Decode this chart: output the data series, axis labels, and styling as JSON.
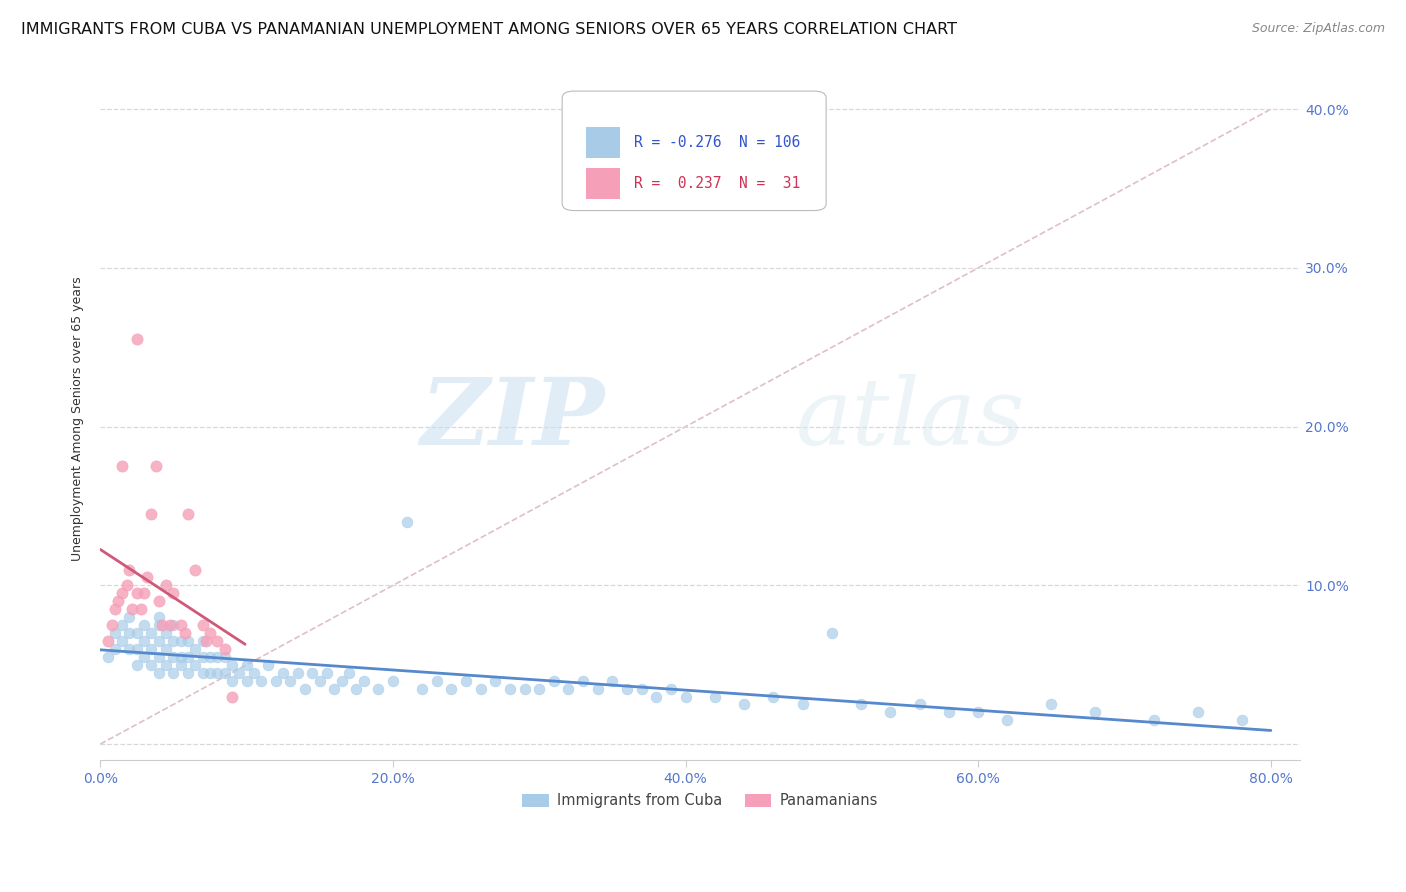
{
  "title": "IMMIGRANTS FROM CUBA VS PANAMANIAN UNEMPLOYMENT AMONG SENIORS OVER 65 YEARS CORRELATION CHART",
  "source": "Source: ZipAtlas.com",
  "ylabel": "Unemployment Among Seniors over 65 years",
  "watermark_zip": "ZIP",
  "watermark_atlas": "atlas",
  "xlim": [
    0,
    0.82
  ],
  "ylim": [
    -0.01,
    0.42
  ],
  "xticks": [
    0.0,
    0.2,
    0.4,
    0.6,
    0.8
  ],
  "xticklabels": [
    "0.0%",
    "20.0%",
    "40.0%",
    "60.0%",
    "80.0%"
  ],
  "yticks": [
    0.0,
    0.1,
    0.2,
    0.3,
    0.4
  ],
  "yticklabels_right": [
    "",
    "10.0%",
    "20.0%",
    "30.0%",
    "40.0%"
  ],
  "cuba_color": "#a8cce8",
  "panama_color": "#f5a0b8",
  "cuba_trendline_color": "#5588cc",
  "panama_trendline_color": "#d05878",
  "diag_color": "#d8a0b0",
  "grid_color": "#d8d8d8",
  "background_color": "#ffffff",
  "title_fontsize": 11.5,
  "axis_label_fontsize": 9,
  "tick_fontsize": 10,
  "legend_r_color_cuba": "#3355cc",
  "legend_r_color_panama": "#cc3355",
  "cuba_scatter_x": [
    0.005,
    0.01,
    0.01,
    0.015,
    0.015,
    0.02,
    0.02,
    0.02,
    0.025,
    0.025,
    0.025,
    0.03,
    0.03,
    0.03,
    0.035,
    0.035,
    0.035,
    0.04,
    0.04,
    0.04,
    0.04,
    0.04,
    0.045,
    0.045,
    0.045,
    0.05,
    0.05,
    0.05,
    0.05,
    0.055,
    0.055,
    0.055,
    0.06,
    0.06,
    0.06,
    0.065,
    0.065,
    0.07,
    0.07,
    0.07,
    0.075,
    0.075,
    0.08,
    0.08,
    0.085,
    0.085,
    0.09,
    0.09,
    0.095,
    0.1,
    0.1,
    0.105,
    0.11,
    0.115,
    0.12,
    0.125,
    0.13,
    0.135,
    0.14,
    0.145,
    0.15,
    0.155,
    0.16,
    0.165,
    0.17,
    0.175,
    0.18,
    0.19,
    0.2,
    0.21,
    0.22,
    0.23,
    0.24,
    0.25,
    0.26,
    0.27,
    0.28,
    0.29,
    0.3,
    0.31,
    0.32,
    0.33,
    0.34,
    0.35,
    0.36,
    0.37,
    0.38,
    0.39,
    0.4,
    0.42,
    0.44,
    0.46,
    0.48,
    0.5,
    0.52,
    0.54,
    0.56,
    0.58,
    0.6,
    0.62,
    0.65,
    0.68,
    0.72,
    0.75,
    0.78
  ],
  "cuba_scatter_y": [
    0.055,
    0.06,
    0.07,
    0.065,
    0.075,
    0.06,
    0.07,
    0.08,
    0.05,
    0.06,
    0.07,
    0.055,
    0.065,
    0.075,
    0.05,
    0.06,
    0.07,
    0.045,
    0.055,
    0.065,
    0.075,
    0.08,
    0.05,
    0.06,
    0.07,
    0.045,
    0.055,
    0.065,
    0.075,
    0.05,
    0.055,
    0.065,
    0.045,
    0.055,
    0.065,
    0.05,
    0.06,
    0.045,
    0.055,
    0.065,
    0.045,
    0.055,
    0.045,
    0.055,
    0.045,
    0.055,
    0.04,
    0.05,
    0.045,
    0.04,
    0.05,
    0.045,
    0.04,
    0.05,
    0.04,
    0.045,
    0.04,
    0.045,
    0.035,
    0.045,
    0.04,
    0.045,
    0.035,
    0.04,
    0.045,
    0.035,
    0.04,
    0.035,
    0.04,
    0.14,
    0.035,
    0.04,
    0.035,
    0.04,
    0.035,
    0.04,
    0.035,
    0.035,
    0.035,
    0.04,
    0.035,
    0.04,
    0.035,
    0.04,
    0.035,
    0.035,
    0.03,
    0.035,
    0.03,
    0.03,
    0.025,
    0.03,
    0.025,
    0.07,
    0.025,
    0.02,
    0.025,
    0.02,
    0.02,
    0.015,
    0.025,
    0.02,
    0.015,
    0.02,
    0.015
  ],
  "panama_scatter_x": [
    0.005,
    0.008,
    0.01,
    0.012,
    0.015,
    0.015,
    0.018,
    0.02,
    0.022,
    0.025,
    0.025,
    0.028,
    0.03,
    0.032,
    0.035,
    0.038,
    0.04,
    0.042,
    0.045,
    0.048,
    0.05,
    0.055,
    0.058,
    0.06,
    0.065,
    0.07,
    0.072,
    0.075,
    0.08,
    0.085,
    0.09
  ],
  "panama_scatter_y": [
    0.065,
    0.075,
    0.085,
    0.09,
    0.095,
    0.175,
    0.1,
    0.11,
    0.085,
    0.095,
    0.255,
    0.085,
    0.095,
    0.105,
    0.145,
    0.175,
    0.09,
    0.075,
    0.1,
    0.075,
    0.095,
    0.075,
    0.07,
    0.145,
    0.11,
    0.075,
    0.065,
    0.07,
    0.065,
    0.06,
    0.03
  ],
  "diag_line_x": [
    0.0,
    0.8
  ],
  "diag_line_y": [
    0.0,
    0.4
  ]
}
